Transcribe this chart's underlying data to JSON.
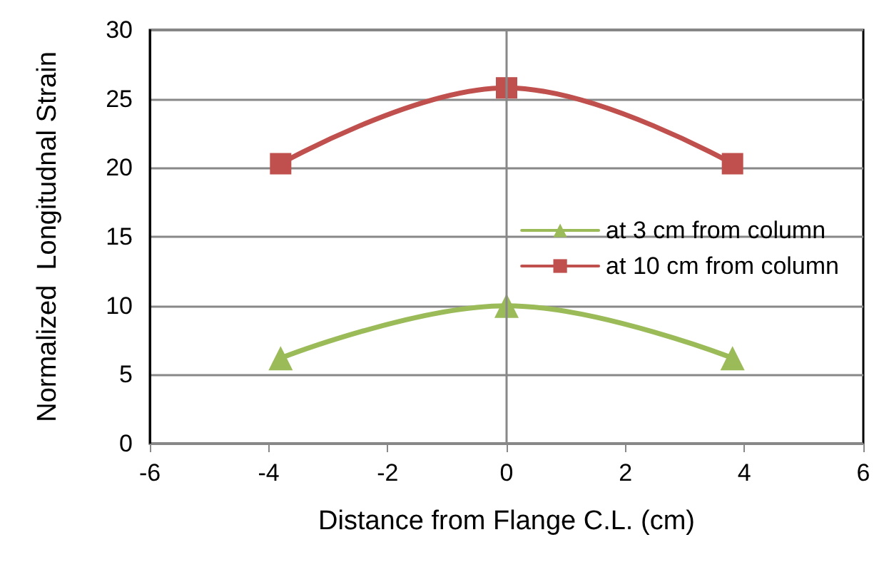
{
  "chart_data": {
    "type": "line",
    "xlabel": "Distance from Flange C.L. (cm)",
    "ylabel": "Normalized  Longitudnal Strain",
    "xlim": [
      -6,
      6
    ],
    "xticks": [
      -6,
      -4,
      -2,
      0,
      2,
      4,
      6
    ],
    "ylim": [
      0,
      30
    ],
    "yticks": [
      0,
      5,
      10,
      15,
      20,
      25,
      30
    ],
    "grid": "y",
    "ref_lines": [
      {
        "axis": "x",
        "value": 0,
        "color": "#888888"
      }
    ],
    "legend": "right",
    "x": [
      -3.8,
      0,
      3.8
    ],
    "series": [
      {
        "name": "at 3 cm from column",
        "color": "#9bbb59",
        "marker": "triangle",
        "values": [
          6.2,
          10,
          6.2
        ]
      },
      {
        "name": "at 10 cm from column",
        "color": "#c0504d",
        "marker": "square",
        "values": [
          20.3,
          25.8,
          20.3
        ]
      }
    ]
  }
}
